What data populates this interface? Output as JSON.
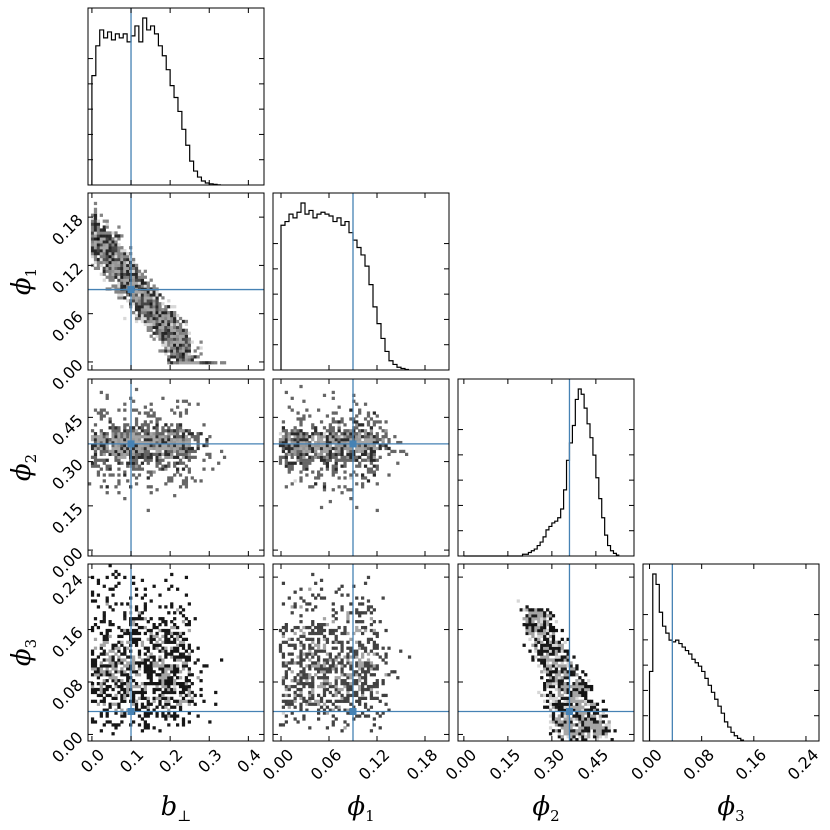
{
  "chart_data": {
    "type": "corner",
    "title": "",
    "parameters": [
      {
        "key": "b_perp",
        "label_base": "b",
        "label_sub": "⊥",
        "range": [
          -0.01,
          0.44
        ],
        "ticks": [
          "0.0",
          "0.1",
          "0.2",
          "0.3",
          "0.4"
        ],
        "tick_values": [
          0.0,
          0.1,
          0.2,
          0.3,
          0.4
        ],
        "truth": 0.1
      },
      {
        "key": "phi1",
        "label_base": "ϕ",
        "label_sub": "1",
        "range": [
          -0.01,
          0.21
        ],
        "ticks": [
          "0.00",
          "0.06",
          "0.12",
          "0.18"
        ],
        "tick_values": [
          0.0,
          0.06,
          0.12,
          0.18
        ],
        "truth": 0.09
      },
      {
        "key": "phi2",
        "label_base": "ϕ",
        "label_sub": "2",
        "range": [
          -0.02,
          0.58
        ],
        "ticks": [
          "0.00",
          "0.15",
          "0.30",
          "0.45"
        ],
        "tick_values": [
          0.0,
          0.15,
          0.3,
          0.45
        ],
        "truth": 0.36
      },
      {
        "key": "phi3",
        "label_base": "ϕ",
        "label_sub": "3",
        "range": [
          -0.01,
          0.26
        ],
        "ticks": [
          "0.00",
          "0.08",
          "0.16",
          "0.24"
        ],
        "tick_values": [
          0.0,
          0.08,
          0.16,
          0.24
        ],
        "truth": 0.035
      }
    ],
    "truth_color": "#4682b4",
    "histograms": [
      {
        "param": "b_perp",
        "bin_width": 0.01,
        "counts": [
          55,
          70,
          78,
          74,
          77,
          73,
          76,
          74,
          76,
          72,
          75,
          80,
          72,
          84,
          78,
          80,
          76,
          70,
          65,
          58,
          50,
          44,
          37,
          28,
          20,
          12,
          7,
          4,
          2,
          1,
          0.6,
          0.3,
          0.1
        ]
      },
      {
        "param": "phi1",
        "bin_width": 0.005,
        "counts": [
          78,
          80,
          84,
          82,
          85,
          90,
          84,
          86,
          82,
          84,
          85,
          84,
          83,
          80,
          82,
          78,
          80,
          74,
          70,
          66,
          62,
          56,
          46,
          34,
          25,
          17,
          10,
          5,
          3,
          1.5,
          0.8,
          0.3
        ]
      },
      {
        "param": "phi2",
        "bin_width": 0.01,
        "counts": [
          0,
          0,
          0,
          0,
          0,
          0,
          0,
          0,
          0,
          0,
          0,
          0,
          0,
          0,
          0,
          0,
          0,
          0,
          0,
          0,
          1,
          1,
          2,
          3,
          4,
          6,
          8,
          11,
          15,
          17,
          19,
          20,
          22,
          27,
          38,
          55,
          65,
          75,
          90,
          96,
          93,
          85,
          76,
          68,
          58,
          45,
          33,
          22,
          12,
          6,
          3,
          1.5,
          0.5
        ]
      },
      {
        "param": "phi3",
        "bin_width": 0.005,
        "counts": [
          40,
          96,
          90,
          74,
          66,
          62,
          58,
          57,
          58,
          56,
          54,
          52,
          50,
          47,
          45,
          43,
          40,
          36,
          32,
          28,
          24,
          20,
          16,
          11,
          8,
          5,
          3,
          1.5,
          0.5
        ]
      }
    ],
    "density_panels": [
      {
        "x": "b_perp",
        "y": "phi1"
      },
      {
        "x": "b_perp",
        "y": "phi2"
      },
      {
        "x": "phi1",
        "y": "phi2"
      },
      {
        "x": "b_perp",
        "y": "phi3"
      },
      {
        "x": "phi1",
        "y": "phi3"
      },
      {
        "x": "phi2",
        "y": "phi3"
      }
    ]
  }
}
